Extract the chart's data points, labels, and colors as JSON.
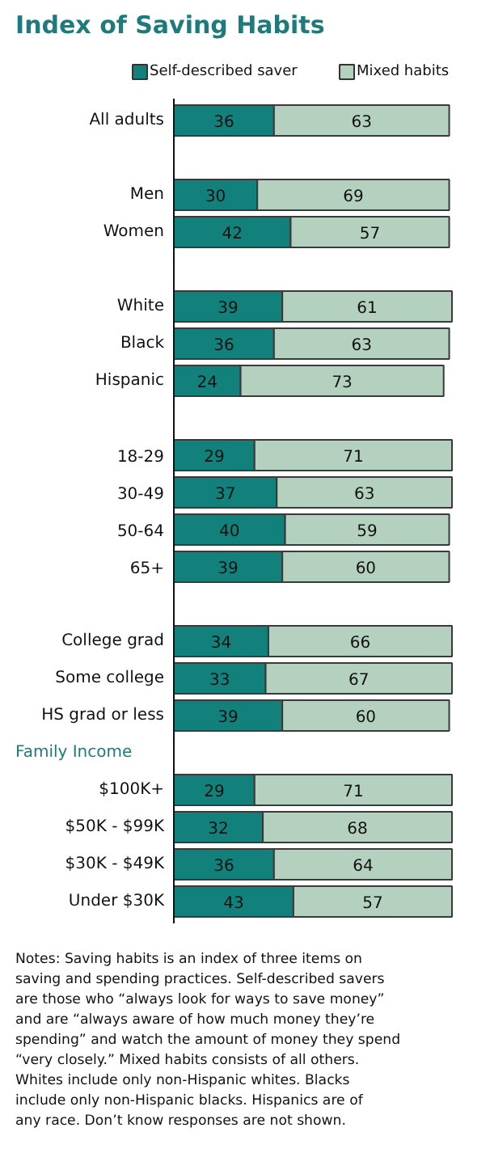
{
  "chart_data": {
    "type": "bar",
    "orientation": "horizontal",
    "stacked": true,
    "data_labels": true,
    "legend": "top",
    "grid": false,
    "title": "Index of Saving Habits",
    "categories": [
      "All adults",
      null,
      "Men",
      "Women",
      null,
      "White",
      "Black",
      "Hispanic",
      null,
      "18-29",
      "30-49",
      "50-64",
      "65+",
      null,
      "College grad",
      "Some college",
      "HS grad or less",
      null,
      "$100K+",
      "$50K - $99K",
      "$30K - $49K",
      "Under $30K"
    ],
    "series": [
      {
        "name": "Self-described saver",
        "color": "#12807b",
        "values": [
          36,
          null,
          30,
          42,
          null,
          39,
          36,
          24,
          null,
          29,
          37,
          40,
          39,
          null,
          34,
          33,
          39,
          null,
          29,
          32,
          36,
          43
        ]
      },
      {
        "name": "Mixed habits",
        "color": "#b4d0bf",
        "values": [
          63,
          null,
          69,
          57,
          null,
          61,
          63,
          73,
          null,
          71,
          63,
          59,
          60,
          null,
          66,
          67,
          60,
          null,
          71,
          68,
          64,
          57
        ]
      }
    ],
    "annotations": [
      "Family Income",
      "Notes: Saving habits is an index of three items on saving and spending practices. Self-described savers are those who “always look for ways to save money” and are “always aware of how much money they’re spending” and watch the amount of money they spend “very closely.” Mixed habits consists of all others. Whites include only non-Hispanic whites. Blacks include only non-Hispanic blacks. Hispanics are of any race. Don’t know responses are not shown."
    ]
  }
}
